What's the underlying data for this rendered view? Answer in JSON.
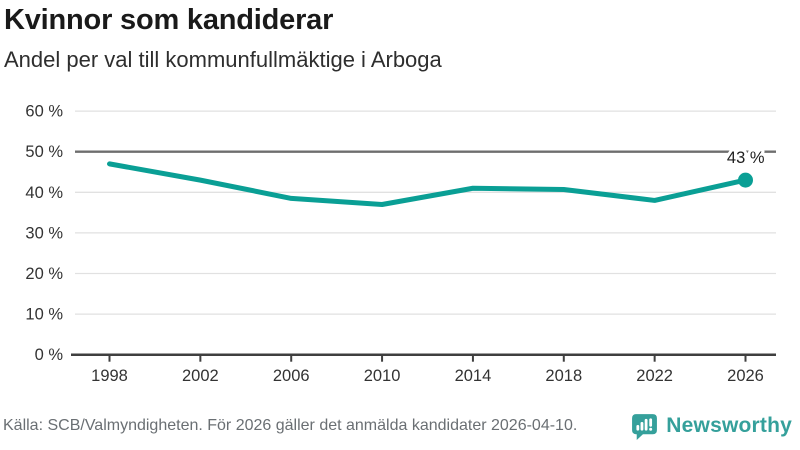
{
  "header": {
    "title": "Kvinnor som kandiderar",
    "subtitle": "Andel per val till kommunfullmäktige i Arboga"
  },
  "chart_data": {
    "type": "line",
    "title": "Kvinnor som kandiderar",
    "subtitle": "Andel per val till kommunfullmäktige i Arboga",
    "x": [
      "1998",
      "2002",
      "2006",
      "2010",
      "2014",
      "2018",
      "2022",
      "2026"
    ],
    "values": [
      47,
      43,
      38.5,
      37,
      41,
      40.7,
      38,
      43
    ],
    "unit": "%",
    "ylim": [
      0,
      60
    ],
    "yticks": [
      0,
      10,
      20,
      30,
      40,
      50,
      60
    ],
    "ytick_suffix": " %",
    "highlight_gridline": 50,
    "grid": true,
    "legend_position": "none",
    "last_point_label": "43 %",
    "last_point_marker": true
  },
  "footer": {
    "source": "Källa: SCB/Valmyndigheten. För 2026 gäller det anmälda kandidater 2026-04-10.",
    "brand": "Newsworthy"
  },
  "colors": {
    "line": "#0a9f95",
    "logo_teal": "#35a09b",
    "grid_light": "#e1e1e1",
    "grid_highlight": "#6e6e6e",
    "axis": "#3f3f3f",
    "text_dark": "#1f1f1f",
    "text_medium": "#333333",
    "text_footer": "#6a6f73",
    "background": "#ffffff"
  }
}
